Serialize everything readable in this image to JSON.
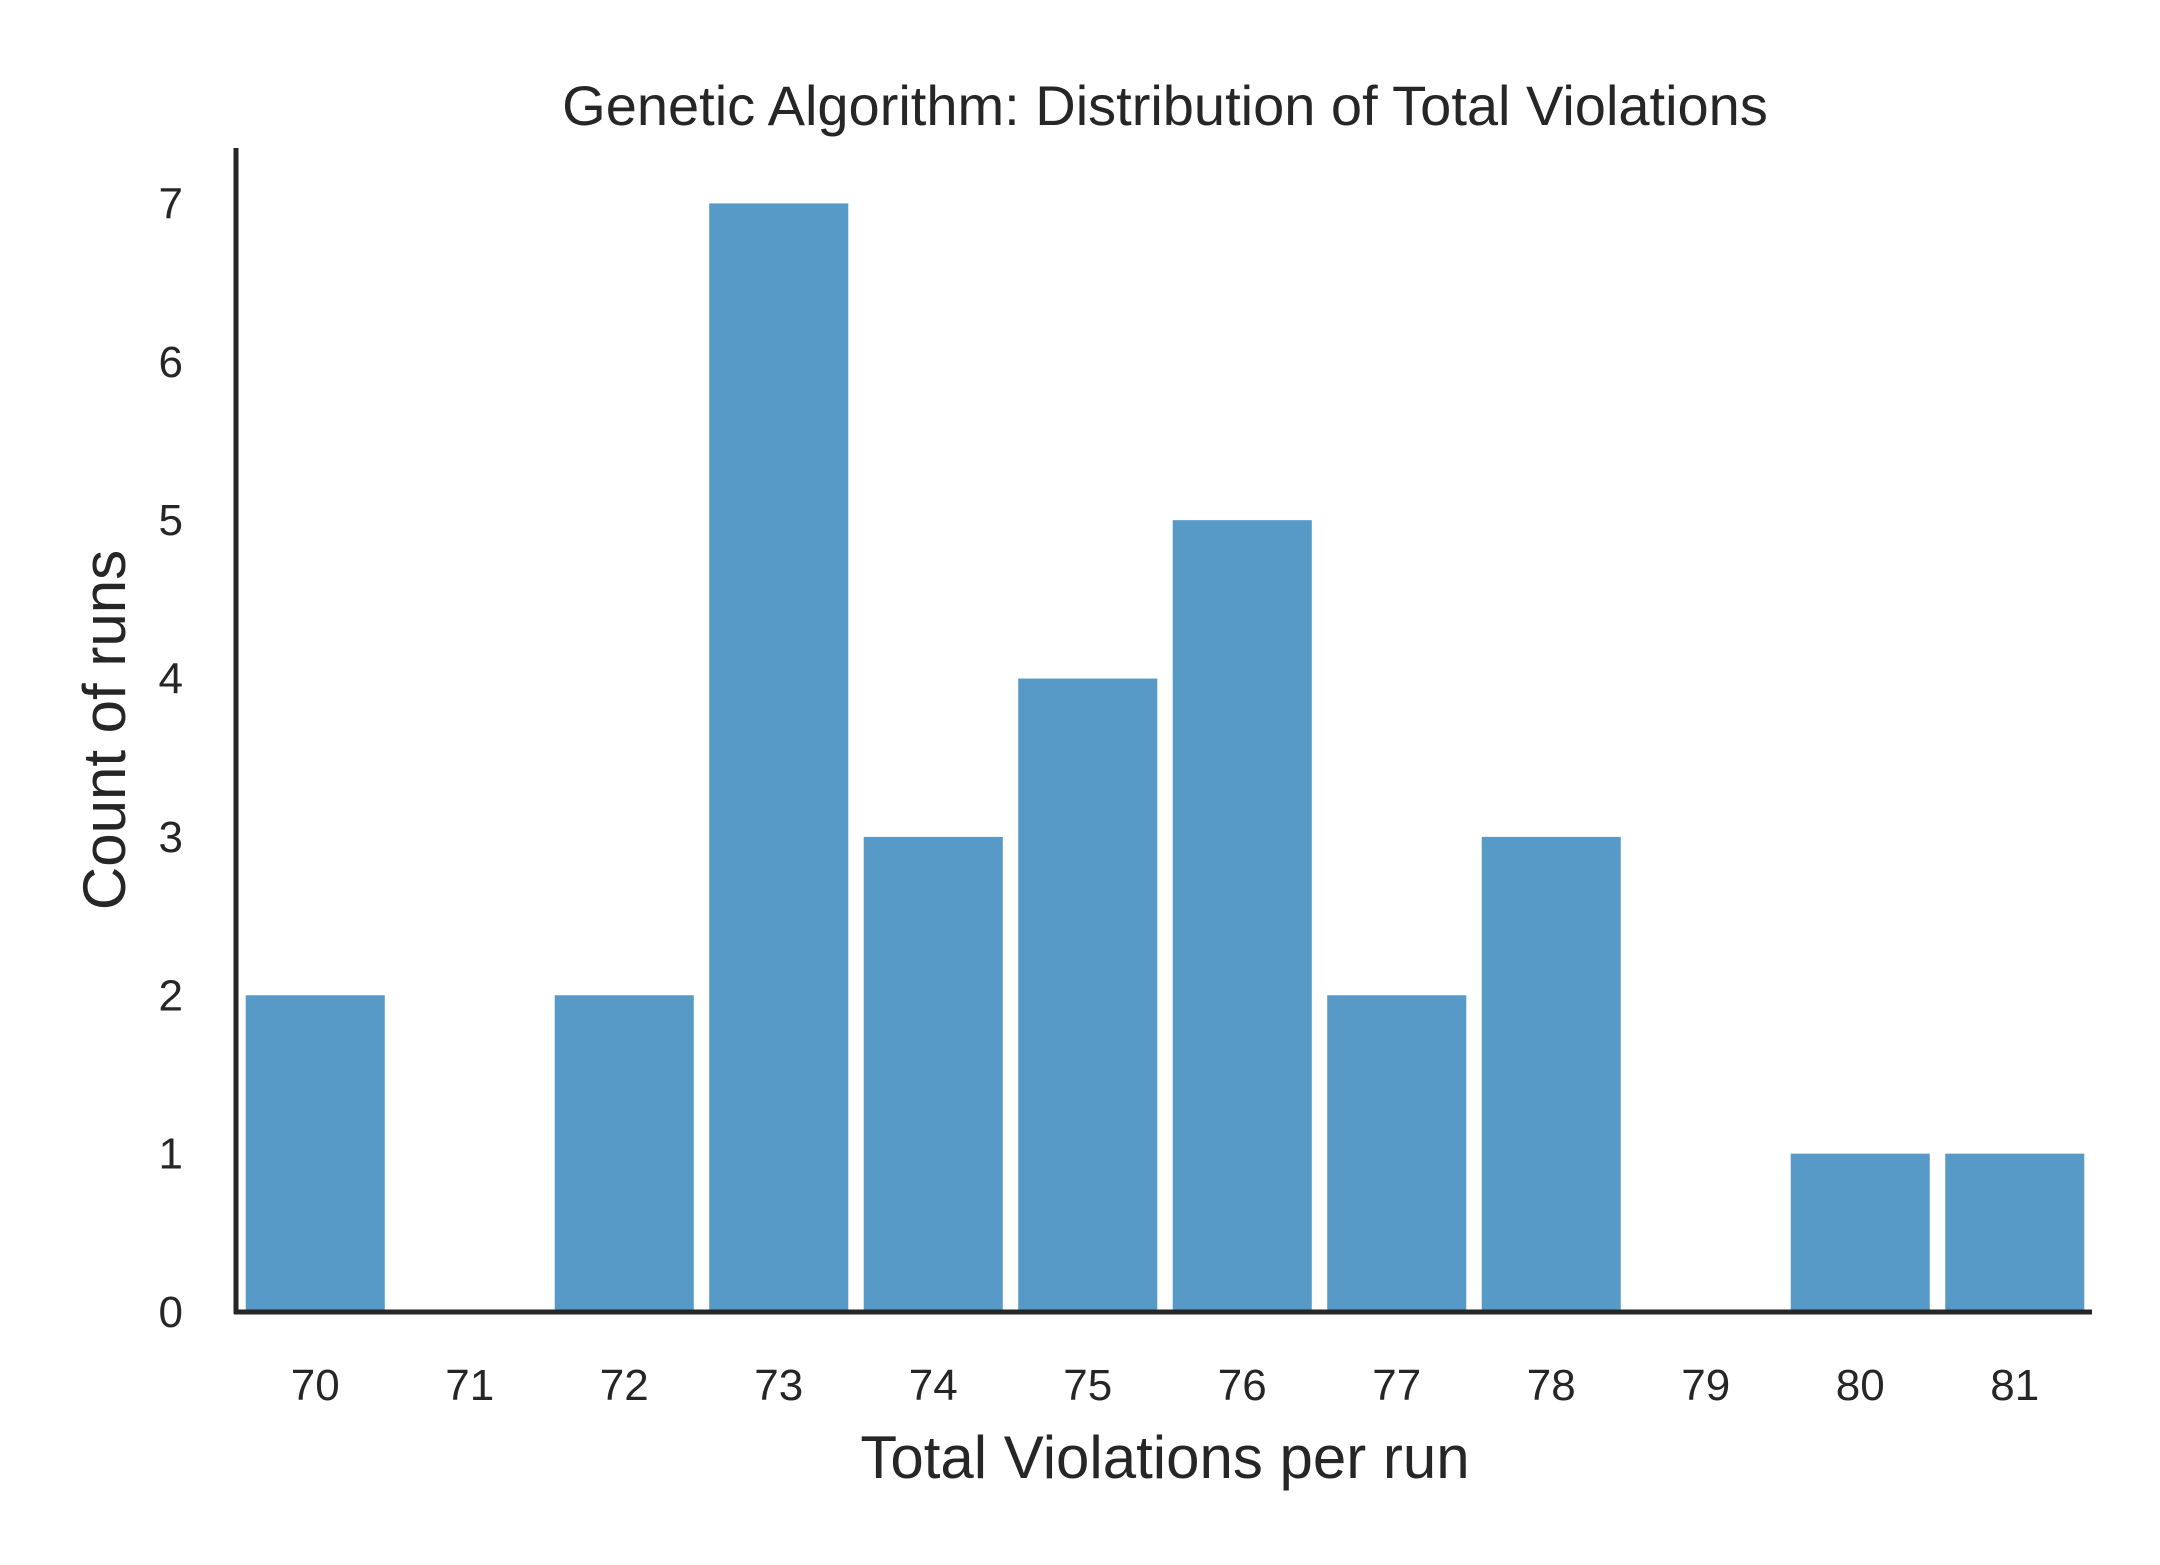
{
  "chart_data": {
    "type": "bar",
    "title": "Genetic Algorithm: Distribution of Total Violations",
    "xlabel": "Total Violations per run",
    "ylabel": "Count of runs",
    "categories": [
      "70",
      "71",
      "72",
      "73",
      "74",
      "75",
      "76",
      "77",
      "78",
      "79",
      "80",
      "81"
    ],
    "values": [
      2,
      0,
      2,
      7,
      3,
      4,
      5,
      2,
      3,
      0,
      1,
      1
    ],
    "ylim": [
      0,
      7.35
    ],
    "yticks": [
      0,
      1,
      2,
      3,
      4,
      5,
      6,
      7
    ],
    "grid": false,
    "legend": "none",
    "colors": {
      "bar": "#5799c7",
      "axis": "#262626",
      "text": "#262626"
    }
  }
}
